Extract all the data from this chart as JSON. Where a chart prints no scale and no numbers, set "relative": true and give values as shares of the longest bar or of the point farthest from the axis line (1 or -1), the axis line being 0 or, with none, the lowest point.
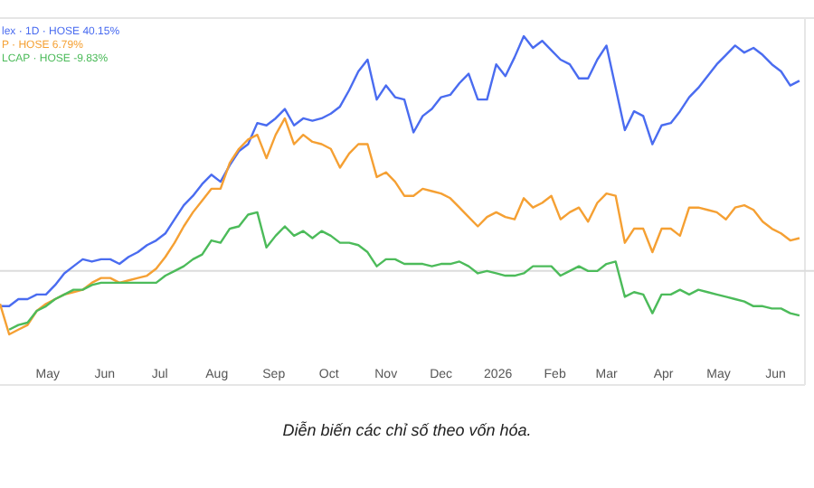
{
  "chart_data": {
    "type": "line",
    "relative": true,
    "legend": "top left",
    "grid": false,
    "x": [
      "2025-04-05",
      "2025-04-10",
      "2025-04-15",
      "2025-04-20",
      "2025-04-25",
      "2025-04-30",
      "2025-05-05",
      "2025-05-10",
      "2025-05-15",
      "2025-05-20",
      "2025-05-25",
      "2025-05-30",
      "2025-06-04",
      "2025-06-09",
      "2025-06-14",
      "2025-06-19",
      "2025-06-24",
      "2025-06-29",
      "2025-07-04",
      "2025-07-09",
      "2025-07-14",
      "2025-07-19",
      "2025-07-24",
      "2025-07-29",
      "2025-08-03",
      "2025-08-08",
      "2025-08-13",
      "2025-08-18",
      "2025-08-23",
      "2025-08-28",
      "2025-09-02",
      "2025-09-07",
      "2025-09-12",
      "2025-09-17",
      "2025-09-22",
      "2025-09-27",
      "2025-10-02",
      "2025-10-07",
      "2025-10-12",
      "2025-10-17",
      "2025-10-22",
      "2025-10-27",
      "2025-11-01",
      "2025-11-06",
      "2025-11-11",
      "2025-11-16",
      "2025-11-21",
      "2025-11-26",
      "2025-12-01",
      "2025-12-06",
      "2025-12-11",
      "2025-12-16",
      "2025-12-21",
      "2025-12-26",
      "2025-12-31",
      "2026-01-05",
      "2026-01-10",
      "2026-01-15",
      "2026-01-20",
      "2026-01-25",
      "2026-01-30",
      "2026-02-04",
      "2026-02-09",
      "2026-02-14",
      "2026-02-19",
      "2026-02-24",
      "2026-03-01",
      "2026-03-06",
      "2026-03-11",
      "2026-03-16",
      "2026-03-21",
      "2026-03-26",
      "2026-03-31",
      "2026-04-05",
      "2026-04-10",
      "2026-04-15",
      "2026-04-20",
      "2026-04-25",
      "2026-04-30",
      "2026-05-05",
      "2026-05-10",
      "2026-05-15",
      "2026-05-20",
      "2026-05-25",
      "2026-05-30",
      "2026-06-04",
      "2026-06-09",
      "2026-06-14"
    ],
    "xlim": [
      "2025-04-05",
      "2026-06-17"
    ],
    "xticks": [
      {
        "value": "2025-05-01",
        "label": "May"
      },
      {
        "value": "2025-06-01",
        "label": "Jun"
      },
      {
        "value": "2025-07-01",
        "label": "Jul"
      },
      {
        "value": "2025-08-01",
        "label": "Aug"
      },
      {
        "value": "2025-09-01",
        "label": "Sep"
      },
      {
        "value": "2025-10-01",
        "label": "Oct"
      },
      {
        "value": "2025-11-01",
        "label": "Nov"
      },
      {
        "value": "2025-12-01",
        "label": "Dec"
      },
      {
        "value": "2026-01-01",
        "label": "2026"
      },
      {
        "value": "2026-02-01",
        "label": "Feb"
      },
      {
        "value": "2026-03-01",
        "label": "Mar"
      },
      {
        "value": "2026-04-01",
        "label": "Apr"
      },
      {
        "value": "2026-05-01",
        "label": "May"
      },
      {
        "value": "2026-06-01",
        "label": "Jun"
      }
    ],
    "series": [
      {
        "name": "lex · 1D · HOSE 40.15%",
        "color": "#4a6cf0",
        "values": [
          -0.15,
          -0.15,
          -0.12,
          -0.12,
          -0.1,
          -0.1,
          -0.06,
          -0.01,
          0.02,
          0.05,
          0.04,
          0.05,
          0.05,
          0.03,
          0.06,
          0.08,
          0.11,
          0.13,
          0.16,
          0.22,
          0.28,
          0.32,
          0.37,
          0.41,
          0.38,
          0.45,
          0.51,
          0.54,
          0.63,
          0.62,
          0.65,
          0.69,
          0.62,
          0.65,
          0.64,
          0.65,
          0.67,
          0.7,
          0.77,
          0.85,
          0.9,
          0.73,
          0.79,
          0.74,
          0.73,
          0.59,
          0.66,
          0.69,
          0.74,
          0.75,
          0.8,
          0.84,
          0.73,
          0.73,
          0.88,
          0.83,
          0.91,
          1.0,
          0.95,
          0.98,
          0.94,
          0.9,
          0.88,
          0.82,
          0.82,
          0.9,
          0.96,
          0.78,
          0.6,
          0.68,
          0.66,
          0.54,
          0.62,
          0.63,
          0.68,
          0.74,
          0.78,
          0.83,
          0.88,
          0.92,
          0.96,
          0.93,
          0.95,
          0.92,
          0.88,
          0.85,
          0.79,
          0.81
        ]
      },
      {
        "name": "P · HOSE 6.79%",
        "color": "#f5a033",
        "values": [
          -0.14,
          -0.27,
          -0.25,
          -0.23,
          -0.17,
          -0.14,
          -0.12,
          -0.1,
          -0.09,
          -0.08,
          -0.05,
          -0.03,
          -0.03,
          -0.05,
          -0.04,
          -0.03,
          -0.02,
          0.01,
          0.06,
          0.12,
          0.19,
          0.25,
          0.3,
          0.35,
          0.35,
          0.46,
          0.52,
          0.56,
          0.58,
          0.48,
          0.58,
          0.65,
          0.54,
          0.58,
          0.55,
          0.54,
          0.52,
          0.44,
          0.5,
          0.54,
          0.54,
          0.4,
          0.42,
          0.38,
          0.32,
          0.32,
          0.35,
          0.34,
          0.33,
          0.31,
          0.27,
          0.23,
          0.19,
          0.23,
          0.25,
          0.23,
          0.22,
          0.31,
          0.27,
          0.29,
          0.32,
          0.22,
          0.25,
          0.27,
          0.21,
          0.29,
          0.33,
          0.32,
          0.12,
          0.18,
          0.18,
          0.08,
          0.18,
          0.18,
          0.15,
          0.27,
          0.27,
          0.26,
          0.25,
          0.22,
          0.27,
          0.28,
          0.26,
          0.21,
          0.18,
          0.16,
          0.13,
          0.14
        ]
      },
      {
        "name": "LCAP · HOSE -9.83%",
        "color": "#4cbb5a",
        "values": [
          null,
          -0.25,
          -0.23,
          -0.22,
          -0.17,
          -0.15,
          -0.12,
          -0.1,
          -0.08,
          -0.08,
          -0.06,
          -0.05,
          -0.05,
          -0.05,
          -0.05,
          -0.05,
          -0.05,
          -0.05,
          -0.02,
          0.0,
          0.02,
          0.05,
          0.07,
          0.13,
          0.12,
          0.18,
          0.19,
          0.24,
          0.25,
          0.1,
          0.15,
          0.19,
          0.15,
          0.17,
          0.14,
          0.17,
          0.15,
          0.12,
          0.12,
          0.11,
          0.08,
          0.02,
          0.05,
          0.05,
          0.03,
          0.03,
          0.03,
          0.02,
          0.03,
          0.03,
          0.04,
          0.02,
          -0.01,
          0.0,
          -0.01,
          -0.02,
          -0.02,
          -0.01,
          0.02,
          0.02,
          0.02,
          -0.02,
          0.0,
          0.02,
          0.0,
          0.0,
          0.03,
          0.04,
          -0.11,
          -0.09,
          -0.1,
          -0.18,
          -0.1,
          -0.1,
          -0.08,
          -0.1,
          -0.08,
          -0.09,
          -0.1,
          -0.11,
          -0.12,
          -0.13,
          -0.15,
          -0.15,
          -0.16,
          -0.16,
          -0.18,
          -0.19
        ]
      }
    ],
    "annotations": [
      "Diễn biến các chỉ số theo vốn hóa."
    ]
  }
}
